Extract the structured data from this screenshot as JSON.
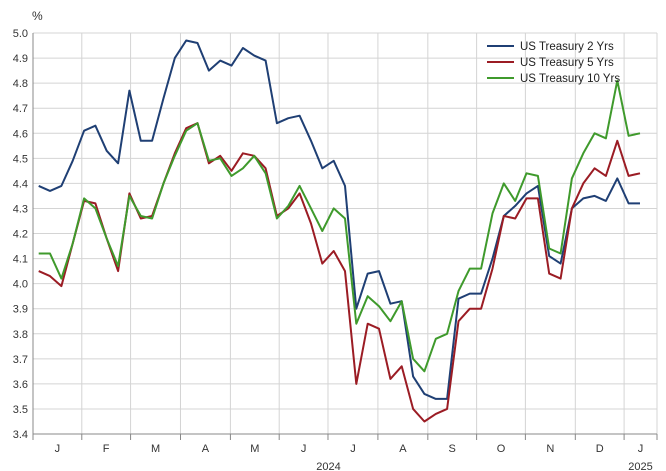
{
  "chart_data": {
    "type": "line",
    "ylabel": "%",
    "ylim": [
      3.4,
      5.0
    ],
    "yticks": [
      "5.0",
      "4.9",
      "4.8",
      "4.7",
      "4.6",
      "4.5",
      "4.4",
      "4.3",
      "4.2",
      "4.1",
      "4.0",
      "3.9",
      "3.8",
      "3.7",
      "3.6",
      "3.5",
      "3.4"
    ],
    "grid": "vertical and horizontal",
    "legend_position": "top-right",
    "month_labels": [
      "J",
      "F",
      "M",
      "A",
      "M",
      "J",
      "J",
      "A",
      "S",
      "O",
      "N",
      "D",
      "J"
    ],
    "year_labels": [
      "2024",
      "2025"
    ],
    "x_weeks": 55,
    "series": [
      {
        "name": "US Treasury 2 Yrs",
        "color": "#1f3f74",
        "values": [
          4.39,
          4.37,
          4.39,
          4.49,
          4.61,
          4.63,
          4.53,
          4.48,
          4.77,
          4.57,
          4.57,
          4.74,
          4.9,
          4.97,
          4.96,
          4.85,
          4.89,
          4.87,
          4.94,
          4.91,
          4.89,
          4.64,
          4.66,
          4.67,
          4.57,
          4.46,
          4.49,
          4.39,
          3.9,
          4.04,
          4.05,
          3.92,
          3.93,
          3.63,
          3.56,
          3.54,
          3.54,
          3.94,
          3.96,
          3.96,
          4.1,
          4.27,
          4.31,
          4.36,
          4.39,
          4.11,
          4.08,
          4.3,
          4.34,
          4.35,
          4.33,
          4.42,
          4.32,
          4.32
        ]
      },
      {
        "name": "US Treasury 5 Yrs",
        "color": "#9b1c24",
        "values": [
          4.05,
          4.03,
          3.99,
          4.16,
          4.33,
          4.32,
          4.18,
          4.05,
          4.36,
          4.26,
          4.27,
          4.4,
          4.52,
          4.62,
          4.64,
          4.48,
          4.51,
          4.45,
          4.52,
          4.51,
          4.46,
          4.27,
          4.3,
          4.36,
          4.24,
          4.08,
          4.13,
          4.05,
          3.6,
          3.84,
          3.82,
          3.62,
          3.67,
          3.5,
          3.45,
          3.48,
          3.5,
          3.85,
          3.9,
          3.9,
          4.06,
          4.27,
          4.26,
          4.34,
          4.34,
          4.04,
          4.02,
          4.3,
          4.4,
          4.46,
          4.43,
          4.57,
          4.43,
          4.44
        ]
      },
      {
        "name": "US Treasury 10 Yrs",
        "color": "#3f9a2c",
        "values": [
          4.12,
          4.12,
          4.02,
          4.16,
          4.34,
          4.3,
          4.18,
          4.07,
          4.35,
          4.27,
          4.26,
          4.4,
          4.51,
          4.61,
          4.64,
          4.49,
          4.5,
          4.43,
          4.46,
          4.51,
          4.44,
          4.26,
          4.31,
          4.39,
          4.3,
          4.21,
          4.3,
          4.26,
          3.84,
          3.95,
          3.91,
          3.85,
          3.93,
          3.7,
          3.65,
          3.78,
          3.8,
          3.97,
          4.06,
          4.06,
          4.28,
          4.4,
          4.33,
          4.44,
          4.43,
          4.14,
          4.12,
          4.42,
          4.52,
          4.6,
          4.58,
          4.81,
          4.59,
          4.6
        ]
      }
    ]
  }
}
